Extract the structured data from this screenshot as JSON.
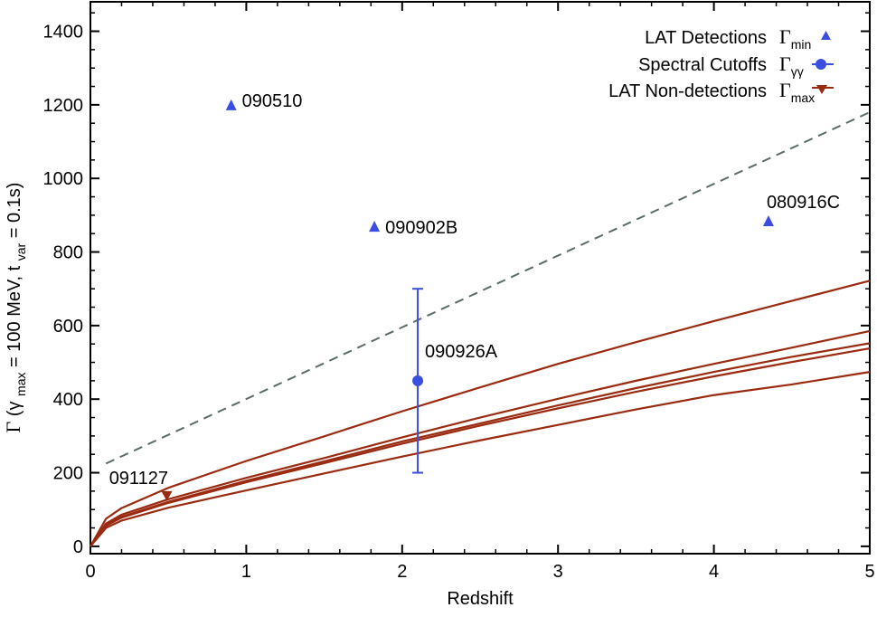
{
  "chart_data": {
    "type": "scatter",
    "xlabel": "Redshift",
    "ylabel_parts": {
      "symbol": "Γ",
      "open": " (γ",
      "sub1": "max",
      "mid": " = 100 MeV, t",
      "sub2": "var",
      "close": " = 0.1s)"
    },
    "xlim": [
      0,
      5
    ],
    "ylim": [
      -20,
      1480
    ],
    "x_ticks": [
      0,
      1,
      2,
      3,
      4,
      5
    ],
    "x_tick_labels": [
      "0",
      "1",
      "2",
      "3",
      "4",
      "5"
    ],
    "y_ticks": [
      0,
      200,
      400,
      600,
      800,
      1000,
      1200,
      1400
    ],
    "y_tick_labels": [
      "0",
      "200",
      "400",
      "600",
      "800",
      "1000",
      "1200",
      "1400"
    ],
    "grid": false,
    "legend": {
      "placement": "top-right",
      "entries": [
        {
          "label": "LAT Detections",
          "symbol": "Γ",
          "sub": "min",
          "marker": "triangle-up",
          "color": "#3a4fe0"
        },
        {
          "label": "Spectral Cutoffs",
          "symbol": "Γ",
          "sub": "γγ",
          "marker": "circle",
          "color": "#3a4fe0"
        },
        {
          "label": "LAT Non-detections",
          "symbol": "Γ",
          "sub": "max",
          "marker": "triangle-down",
          "color": "#9a2a10"
        }
      ]
    },
    "detections": [
      {
        "name": "090510",
        "x": 0.903,
        "y": 1200
      },
      {
        "name": "090902B",
        "x": 1.822,
        "y": 870
      },
      {
        "name": "080916C",
        "x": 4.35,
        "y": 885
      }
    ],
    "cutoff": {
      "name": "090926A",
      "x": 2.1,
      "y": 450,
      "y_low": 200,
      "y_high": 700
    },
    "non_detection": {
      "name": "091127",
      "x": 0.49,
      "y": 140
    },
    "dashed_line": {
      "x": [
        0.1,
        5
      ],
      "y": [
        225,
        1180
      ]
    },
    "curves": [
      {
        "x": [
          0,
          0.1,
          0.2,
          0.5,
          1,
          1.5,
          2,
          2.5,
          3,
          3.5,
          4,
          4.5,
          5
        ],
        "y": [
          0,
          75,
          104,
          159,
          232,
          299,
          367,
          432,
          496,
          555,
          612,
          667,
          722
        ]
      },
      {
        "x": [
          0,
          0.1,
          0.2,
          0.5,
          1,
          1.5,
          2,
          2.5,
          3,
          3.5,
          4,
          4.5,
          5
        ],
        "y": [
          0,
          62,
          86,
          128,
          186,
          240,
          296,
          350,
          401,
          450,
          496,
          540,
          585
        ]
      },
      {
        "x": [
          0,
          0.1,
          0.2,
          0.5,
          1,
          1.5,
          2,
          2.5,
          3,
          3.5,
          4,
          4.5,
          5
        ],
        "y": [
          0,
          58,
          80,
          121,
          178,
          231,
          285,
          334,
          383,
          430,
          474,
          515,
          552
        ]
      },
      {
        "x": [
          0,
          0.1,
          0.2,
          0.5,
          1,
          1.5,
          2,
          2.5,
          3,
          3.5,
          4,
          4.5,
          5
        ],
        "y": [
          0,
          56,
          78,
          118,
          174,
          226,
          279,
          328,
          375,
          420,
          462,
          501,
          538
        ]
      },
      {
        "x": [
          0,
          0.1,
          0.2,
          0.5,
          1,
          1.5,
          2,
          2.5,
          3,
          3.5,
          4,
          4.5,
          5
        ],
        "y": [
          0,
          50,
          70,
          105,
          152,
          198,
          244,
          288,
          330,
          372,
          411,
          440,
          474
        ]
      }
    ],
    "colors": {
      "blue": "#3a4fe0",
      "curve": "#9a2a10",
      "dashed": "#5b6a6a"
    }
  }
}
